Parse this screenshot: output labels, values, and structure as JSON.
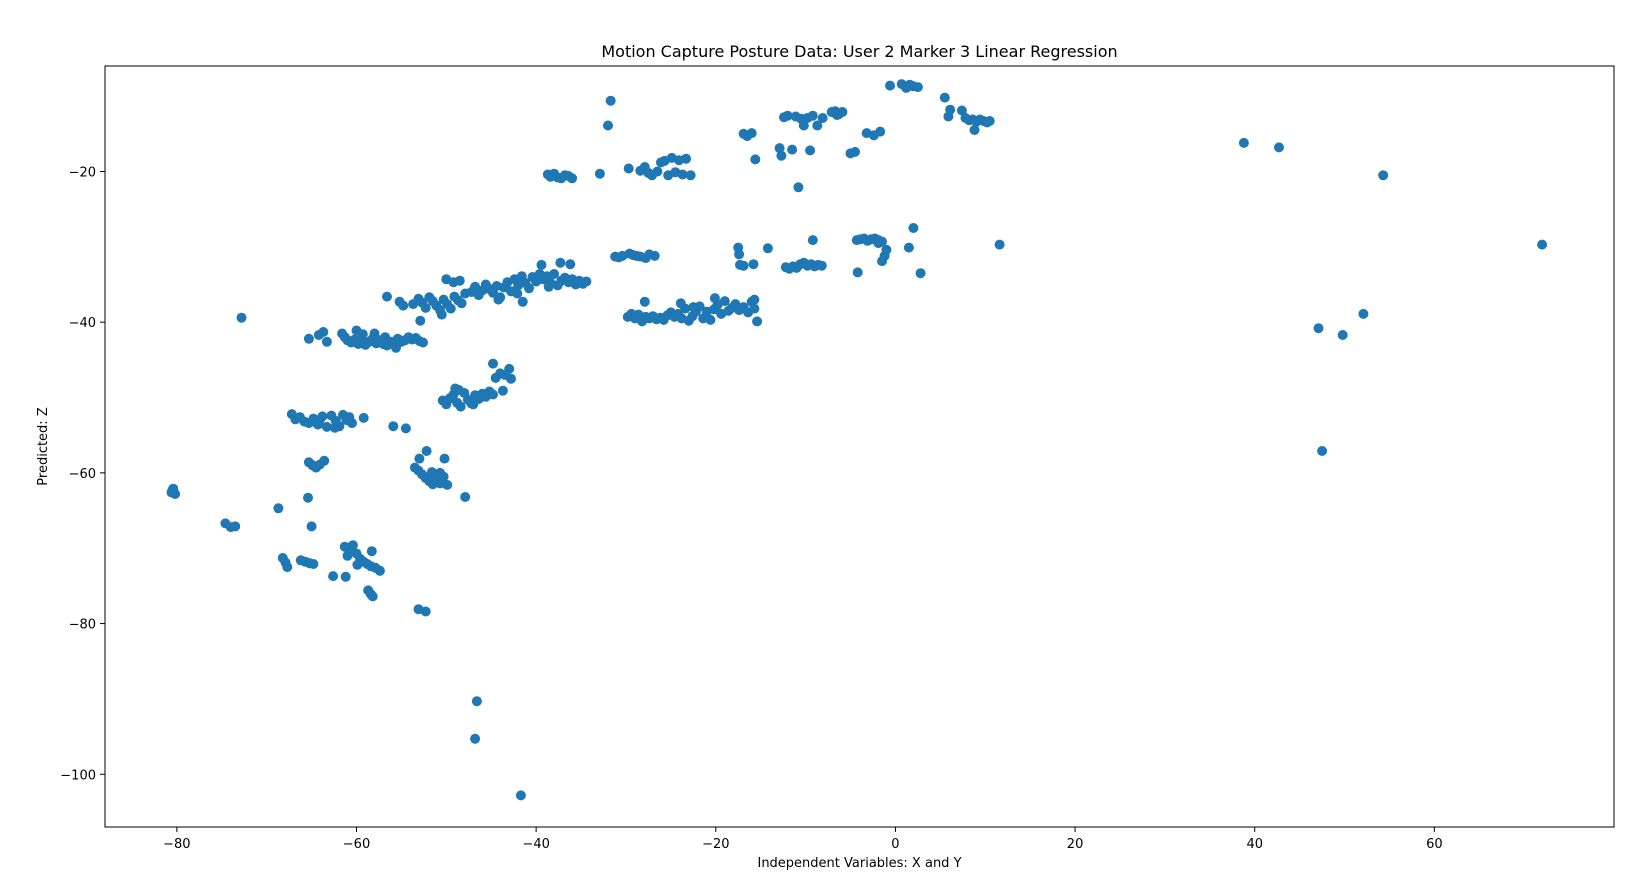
{
  "chart_data": {
    "type": "scatter",
    "title": "Motion Capture Posture Data: User 2 Marker 3 Linear Regression",
    "xlabel": "Independent Variables: X and Y",
    "ylabel": "Predicted: Z",
    "xlim": [
      -88,
      80
    ],
    "ylim": [
      -107,
      -6
    ],
    "xticks": [
      -80,
      -60,
      -40,
      -20,
      0,
      20,
      40,
      60
    ],
    "yticks": [
      -20,
      -40,
      -60,
      -80,
      -100
    ],
    "grid": false,
    "point_color": "#1f77b4",
    "points": [
      [
        -80.6,
        -62.6
      ],
      [
        -80.4,
        -62.1
      ],
      [
        -80.2,
        -62.8
      ],
      [
        -80.5,
        -62.3
      ],
      [
        -74.6,
        -66.7
      ],
      [
        -74.0,
        -67.2
      ],
      [
        -73.5,
        -67.1
      ],
      [
        -72.8,
        -39.4
      ],
      [
        -68.7,
        -64.7
      ],
      [
        -68.2,
        -71.3
      ],
      [
        -67.9,
        -71.9
      ],
      [
        -67.7,
        -72.5
      ],
      [
        -67.2,
        -52.2
      ],
      [
        -66.8,
        -52.9
      ],
      [
        -66.3,
        -52.6
      ],
      [
        -65.8,
        -53.2
      ],
      [
        -65.3,
        -53.4
      ],
      [
        -64.8,
        -52.8
      ],
      [
        -64.3,
        -53.6
      ],
      [
        -63.8,
        -52.5
      ],
      [
        -63.3,
        -53.9
      ],
      [
        -62.8,
        -52.4
      ],
      [
        -62.3,
        -53.1
      ],
      [
        -61.9,
        -53.8
      ],
      [
        -61.5,
        -52.3
      ],
      [
        -61.1,
        -53.0
      ],
      [
        -60.8,
        -52.6
      ],
      [
        -60.5,
        -53.4
      ],
      [
        -62.4,
        -54.0
      ],
      [
        -64.1,
        -53.0
      ],
      [
        -66.2,
        -71.6
      ],
      [
        -65.7,
        -71.8
      ],
      [
        -65.2,
        -72.0
      ],
      [
        -64.8,
        -72.1
      ],
      [
        -65.4,
        -63.3
      ],
      [
        -65.0,
        -67.1
      ],
      [
        -65.3,
        -58.6
      ],
      [
        -64.9,
        -59.0
      ],
      [
        -64.5,
        -59.3
      ],
      [
        -64.1,
        -58.9
      ],
      [
        -63.6,
        -58.4
      ],
      [
        -65.3,
        -42.2
      ],
      [
        -64.2,
        -41.7
      ],
      [
        -63.7,
        -41.3
      ],
      [
        -63.3,
        -42.6
      ],
      [
        -62.6,
        -73.7
      ],
      [
        -61.2,
        -73.8
      ],
      [
        -61.6,
        -41.5
      ],
      [
        -61.3,
        -42.0
      ],
      [
        -61.0,
        -42.4
      ],
      [
        -60.6,
        -42.7
      ],
      [
        -60.2,
        -42.3
      ],
      [
        -59.8,
        -42.9
      ],
      [
        -59.4,
        -42.5
      ],
      [
        -59.0,
        -43.0
      ],
      [
        -58.6,
        -42.6
      ],
      [
        -58.2,
        -42.2
      ],
      [
        -57.8,
        -42.8
      ],
      [
        -57.4,
        -42.4
      ],
      [
        -57.0,
        -42.9
      ],
      [
        -56.6,
        -43.1
      ],
      [
        -56.2,
        -42.6
      ],
      [
        -55.8,
        -42.8
      ],
      [
        -55.4,
        -42.2
      ],
      [
        -55.0,
        -42.6
      ],
      [
        -54.6,
        -42.4
      ],
      [
        -54.2,
        -42.0
      ],
      [
        -53.8,
        -42.3
      ],
      [
        -53.4,
        -42.1
      ],
      [
        -53.0,
        -42.5
      ],
      [
        -52.6,
        -42.7
      ],
      [
        -60.0,
        -41.1
      ],
      [
        -59.3,
        -41.6
      ],
      [
        -58.0,
        -41.5
      ],
      [
        -56.8,
        -42.0
      ],
      [
        -55.6,
        -43.4
      ],
      [
        -61.3,
        -69.8
      ],
      [
        -60.8,
        -70.2
      ],
      [
        -60.4,
        -69.6
      ],
      [
        -60.0,
        -70.7
      ],
      [
        -59.6,
        -71.4
      ],
      [
        -59.2,
        -71.8
      ],
      [
        -58.8,
        -72.1
      ],
      [
        -58.4,
        -72.4
      ],
      [
        -57.9,
        -72.6
      ],
      [
        -57.4,
        -73.0
      ],
      [
        -61.0,
        -71.0
      ],
      [
        -59.9,
        -72.2
      ],
      [
        -58.3,
        -70.4
      ],
      [
        -59.2,
        -52.7
      ],
      [
        -58.7,
        -75.6
      ],
      [
        -58.4,
        -76.1
      ],
      [
        -58.2,
        -76.4
      ],
      [
        -56.6,
        -36.6
      ],
      [
        -55.9,
        -53.8
      ],
      [
        -54.5,
        -54.1
      ],
      [
        -55.2,
        -37.3
      ],
      [
        -54.8,
        -37.8
      ],
      [
        -53.7,
        -37.6
      ],
      [
        -53.1,
        -36.9
      ],
      [
        -52.7,
        -37.4
      ],
      [
        -52.3,
        -38.1
      ],
      [
        -51.9,
        -36.7
      ],
      [
        -51.5,
        -37.2
      ],
      [
        -51.1,
        -37.8
      ],
      [
        -50.7,
        -38.4
      ],
      [
        -50.3,
        -37.0
      ],
      [
        -49.9,
        -37.6
      ],
      [
        -49.5,
        -38.2
      ],
      [
        -49.1,
        -36.6
      ],
      [
        -48.7,
        -37.1
      ],
      [
        -48.3,
        -37.5
      ],
      [
        -47.9,
        -36.2
      ],
      [
        -52.9,
        -39.8
      ],
      [
        -50.5,
        -39.0
      ],
      [
        -50.0,
        -34.3
      ],
      [
        -49.2,
        -34.7
      ],
      [
        -48.5,
        -34.5
      ],
      [
        -53.5,
        -59.3
      ],
      [
        -53.1,
        -59.7
      ],
      [
        -52.7,
        -60.2
      ],
      [
        -52.3,
        -60.7
      ],
      [
        -51.9,
        -61.1
      ],
      [
        -51.5,
        -61.5
      ],
      [
        -51.1,
        -60.9
      ],
      [
        -50.7,
        -61.4
      ],
      [
        -50.3,
        -60.5
      ],
      [
        -49.9,
        -61.6
      ],
      [
        -53.0,
        -58.1
      ],
      [
        -52.2,
        -57.1
      ],
      [
        -50.2,
        -58.1
      ],
      [
        -51.6,
        -59.9
      ],
      [
        -50.7,
        -60.0
      ],
      [
        -47.9,
        -63.2
      ],
      [
        -53.1,
        -78.1
      ],
      [
        -52.3,
        -78.4
      ],
      [
        -50.4,
        -50.4
      ],
      [
        -50.0,
        -50.9
      ],
      [
        -49.6,
        -50.1
      ],
      [
        -49.2,
        -49.6
      ],
      [
        -48.8,
        -50.7
      ],
      [
        -48.4,
        -51.2
      ],
      [
        -48.0,
        -49.4
      ],
      [
        -47.6,
        -50.3
      ],
      [
        -47.2,
        -50.8
      ],
      [
        -46.8,
        -49.7
      ],
      [
        -46.4,
        -50.2
      ],
      [
        -46.0,
        -49.5
      ],
      [
        -45.6,
        -49.9
      ],
      [
        -45.2,
        -49.2
      ],
      [
        -44.8,
        -49.6
      ],
      [
        -49.0,
        -48.8
      ],
      [
        -48.6,
        -49.0
      ],
      [
        -47.0,
        -50.9
      ],
      [
        -44.8,
        -45.5
      ],
      [
        -44.5,
        -47.4
      ],
      [
        -44.0,
        -46.8
      ],
      [
        -43.5,
        -47.0
      ],
      [
        -43.0,
        -46.2
      ],
      [
        -42.8,
        -47.5
      ],
      [
        -43.7,
        -49.1
      ],
      [
        -46.6,
        -90.3
      ],
      [
        -46.8,
        -95.3
      ],
      [
        -41.7,
        -102.8
      ],
      [
        -47.2,
        -36.0
      ],
      [
        -46.8,
        -35.3
      ],
      [
        -46.4,
        -36.4
      ],
      [
        -46.0,
        -35.8
      ],
      [
        -45.6,
        -35.0
      ],
      [
        -45.2,
        -35.6
      ],
      [
        -44.8,
        -36.1
      ],
      [
        -44.4,
        -35.2
      ],
      [
        -44.0,
        -36.7
      ],
      [
        -43.6,
        -35.4
      ],
      [
        -43.2,
        -34.7
      ],
      [
        -42.8,
        -35.9
      ],
      [
        -42.4,
        -34.3
      ],
      [
        -42.0,
        -35.1
      ],
      [
        -41.6,
        -33.9
      ],
      [
        -41.2,
        -34.8
      ],
      [
        -40.8,
        -35.5
      ],
      [
        -40.4,
        -34.0
      ],
      [
        -40.0,
        -34.6
      ],
      [
        -39.6,
        -33.6
      ],
      [
        -39.2,
        -34.3
      ],
      [
        -38.8,
        -33.9
      ],
      [
        -38.4,
        -34.8
      ],
      [
        -38.0,
        -33.6
      ],
      [
        -37.6,
        -35.1
      ],
      [
        -37.2,
        -34.5
      ],
      [
        -36.8,
        -34.1
      ],
      [
        -36.4,
        -34.7
      ],
      [
        -36.0,
        -34.3
      ],
      [
        -35.6,
        -35.0
      ],
      [
        -35.2,
        -34.5
      ],
      [
        -34.8,
        -34.9
      ],
      [
        -34.4,
        -34.6
      ],
      [
        -44.2,
        -37.0
      ],
      [
        -42.1,
        -36.2
      ],
      [
        -41.5,
        -37.3
      ],
      [
        -39.4,
        -32.4
      ],
      [
        -37.3,
        -32.1
      ],
      [
        -36.2,
        -32.3
      ],
      [
        -38.6,
        -35.3
      ],
      [
        -38.7,
        -20.4
      ],
      [
        -38.4,
        -20.7
      ],
      [
        -38.0,
        -20.3
      ],
      [
        -37.6,
        -20.8
      ],
      [
        -37.2,
        -20.9
      ],
      [
        -36.8,
        -20.5
      ],
      [
        -36.4,
        -20.6
      ],
      [
        -36.0,
        -20.9
      ],
      [
        -32.9,
        -20.3
      ],
      [
        -32.0,
        -13.9
      ],
      [
        -31.7,
        -10.6
      ],
      [
        -31.2,
        -31.3
      ],
      [
        -30.8,
        -31.4
      ],
      [
        -30.4,
        -31.2
      ],
      [
        -29.6,
        -30.9
      ],
      [
        -29.2,
        -31.1
      ],
      [
        -28.8,
        -31.2
      ],
      [
        -28.4,
        -31.3
      ],
      [
        -27.8,
        -31.5
      ],
      [
        -27.4,
        -31.0
      ],
      [
        -26.8,
        -31.2
      ],
      [
        -29.7,
        -19.6
      ],
      [
        -28.4,
        -19.9
      ],
      [
        -27.9,
        -19.4
      ],
      [
        -27.5,
        -20.2
      ],
      [
        -27.1,
        -20.5
      ],
      [
        -26.5,
        -20.0
      ],
      [
        -26.1,
        -18.8
      ],
      [
        -25.7,
        -18.6
      ],
      [
        -25.3,
        -20.5
      ],
      [
        -24.9,
        -18.2
      ],
      [
        -24.5,
        -20.1
      ],
      [
        -24.1,
        -18.5
      ],
      [
        -23.7,
        -20.4
      ],
      [
        -23.3,
        -18.3
      ],
      [
        -22.8,
        -20.5
      ],
      [
        -29.8,
        -39.3
      ],
      [
        -29.4,
        -38.9
      ],
      [
        -29.0,
        -39.5
      ],
      [
        -28.6,
        -39.0
      ],
      [
        -28.2,
        -39.9
      ],
      [
        -27.8,
        -39.3
      ],
      [
        -27.4,
        -39.5
      ],
      [
        -27.0,
        -39.2
      ],
      [
        -26.6,
        -39.6
      ],
      [
        -26.2,
        -39.4
      ],
      [
        -25.8,
        -39.7
      ],
      [
        -25.4,
        -39.1
      ],
      [
        -25.0,
        -38.7
      ],
      [
        -24.6,
        -39.3
      ],
      [
        -24.2,
        -38.9
      ],
      [
        -23.8,
        -39.5
      ],
      [
        -23.4,
        -38.2
      ],
      [
        -23.0,
        -39.8
      ],
      [
        -22.6,
        -39.2
      ],
      [
        -22.2,
        -38.6
      ],
      [
        -21.8,
        -37.9
      ],
      [
        -21.4,
        -39.5
      ],
      [
        -21.0,
        -38.6
      ],
      [
        -20.6,
        -39.7
      ],
      [
        -20.2,
        -38.3
      ],
      [
        -19.8,
        -37.7
      ],
      [
        -19.4,
        -38.9
      ],
      [
        -19.0,
        -37.2
      ],
      [
        -18.6,
        -38.5
      ],
      [
        -18.2,
        -38.1
      ],
      [
        -17.8,
        -37.6
      ],
      [
        -17.4,
        -38.4
      ],
      [
        -16.9,
        -38.0
      ],
      [
        -16.4,
        -38.7
      ],
      [
        -16.0,
        -37.3
      ],
      [
        -15.7,
        -38.2
      ],
      [
        -27.9,
        -37.3
      ],
      [
        -23.9,
        -37.5
      ],
      [
        -20.1,
        -36.8
      ],
      [
        -22.5,
        -38.0
      ],
      [
        -15.4,
        -39.9
      ],
      [
        -15.7,
        -37.0
      ],
      [
        -17.4,
        -31.0
      ],
      [
        -17.5,
        -30.1
      ],
      [
        -17.3,
        -32.4
      ],
      [
        -16.9,
        -32.5
      ],
      [
        -15.8,
        -32.3
      ],
      [
        -14.2,
        -30.2
      ],
      [
        -16.9,
        -15.0
      ],
      [
        -16.5,
        -15.3
      ],
      [
        -16.0,
        -14.9
      ],
      [
        -15.6,
        -18.4
      ],
      [
        -12.9,
        -16.9
      ],
      [
        -12.7,
        -17.9
      ],
      [
        -12.4,
        -12.8
      ],
      [
        -12.0,
        -12.6
      ],
      [
        -11.5,
        -17.1
      ],
      [
        -11.1,
        -12.7
      ],
      [
        -10.8,
        -22.1
      ],
      [
        -10.5,
        -13.0
      ],
      [
        -10.2,
        -13.9
      ],
      [
        -9.8,
        -12.9
      ],
      [
        -9.5,
        -17.2
      ],
      [
        -9.2,
        -12.6
      ],
      [
        -8.7,
        -13.9
      ],
      [
        -8.1,
        -12.9
      ],
      [
        -7.1,
        -12.1
      ],
      [
        -6.7,
        -12.0
      ],
      [
        -6.3,
        -12.4
      ],
      [
        -5.9,
        -12.1
      ],
      [
        -6.5,
        -12.5
      ],
      [
        -12.2,
        -32.7
      ],
      [
        -11.8,
        -32.9
      ],
      [
        -11.4,
        -32.6
      ],
      [
        -11.0,
        -32.8
      ],
      [
        -10.6,
        -32.3
      ],
      [
        -10.2,
        -32.1
      ],
      [
        -9.8,
        -32.5
      ],
      [
        -9.4,
        -32.3
      ],
      [
        -9.0,
        -32.6
      ],
      [
        -8.6,
        -32.4
      ],
      [
        -8.2,
        -32.5
      ],
      [
        -9.2,
        -29.1
      ],
      [
        -5.0,
        -17.6
      ],
      [
        -4.5,
        -17.4
      ],
      [
        -4.3,
        -29.1
      ],
      [
        -3.9,
        -29.0
      ],
      [
        -3.5,
        -28.9
      ],
      [
        -3.1,
        -29.2
      ],
      [
        -2.7,
        -29.0
      ],
      [
        -2.3,
        -28.9
      ],
      [
        -1.9,
        -29.1
      ],
      [
        -1.5,
        -29.3
      ],
      [
        -4.2,
        -33.4
      ],
      [
        -1.5,
        -31.9
      ],
      [
        -1.2,
        -31.2
      ],
      [
        -1.0,
        -30.4
      ],
      [
        -1.9,
        -29.5
      ],
      [
        -3.2,
        -14.9
      ],
      [
        -2.4,
        -15.2
      ],
      [
        -1.7,
        -14.7
      ],
      [
        -0.6,
        -8.6
      ],
      [
        0.7,
        -8.4
      ],
      [
        1.2,
        -8.9
      ],
      [
        1.6,
        -8.5
      ],
      [
        2.0,
        -8.7
      ],
      [
        2.5,
        -8.8
      ],
      [
        1.5,
        -30.1
      ],
      [
        2.0,
        -27.5
      ],
      [
        2.8,
        -33.5
      ],
      [
        5.5,
        -10.2
      ],
      [
        5.9,
        -12.7
      ],
      [
        6.1,
        -11.8
      ],
      [
        7.4,
        -11.9
      ],
      [
        7.8,
        -12.9
      ],
      [
        8.2,
        -13.2
      ],
      [
        8.6,
        -13.1
      ],
      [
        9.0,
        -13.4
      ],
      [
        9.4,
        -13.1
      ],
      [
        9.8,
        -13.3
      ],
      [
        10.2,
        -13.5
      ],
      [
        10.5,
        -13.3
      ],
      [
        8.8,
        -14.5
      ],
      [
        11.6,
        -29.7
      ],
      [
        38.8,
        -16.2
      ],
      [
        42.7,
        -16.8
      ],
      [
        54.3,
        -20.5
      ],
      [
        47.1,
        -40.8
      ],
      [
        47.5,
        -57.1
      ],
      [
        49.8,
        -41.7
      ],
      [
        52.1,
        -38.9
      ],
      [
        72.0,
        -29.7
      ]
    ]
  }
}
